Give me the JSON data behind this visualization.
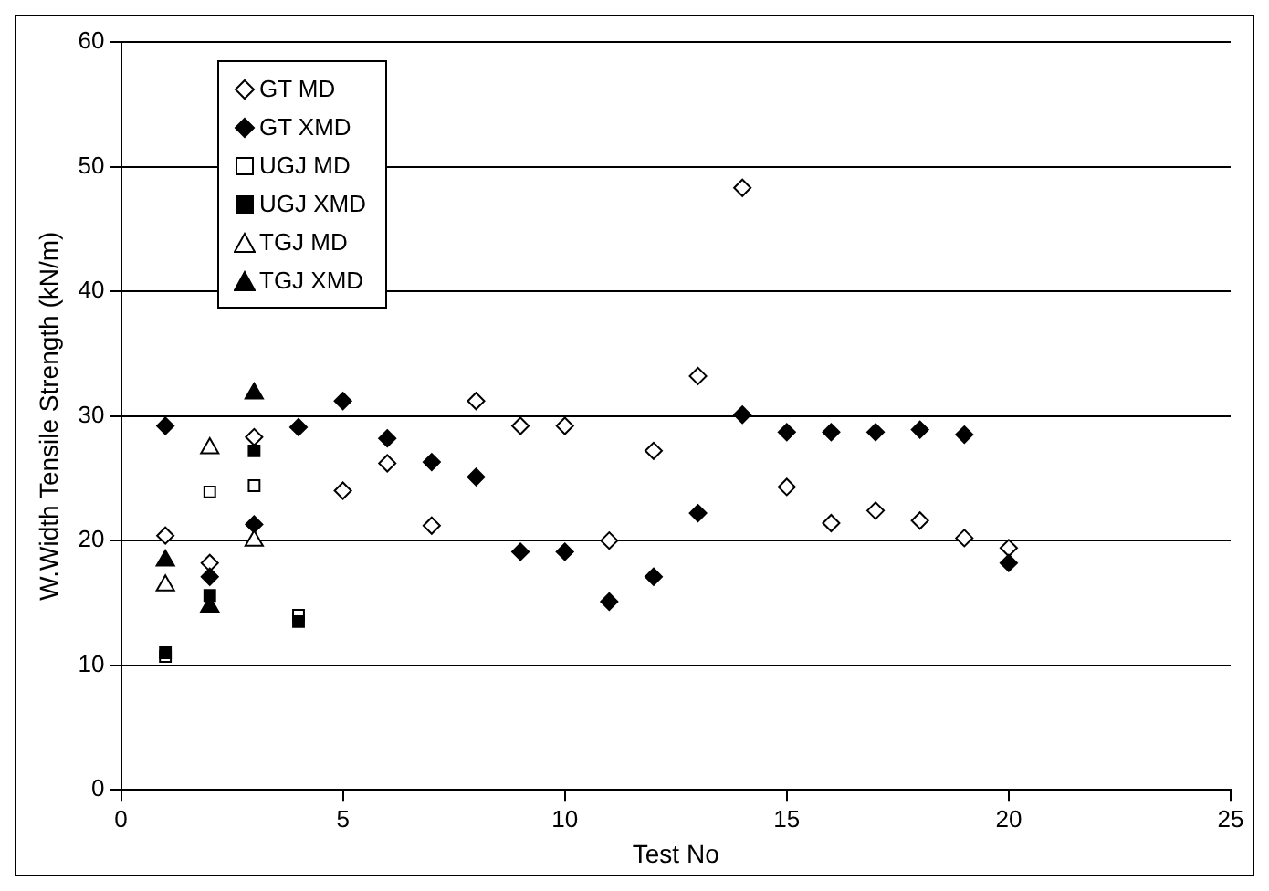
{
  "chart_data": {
    "type": "scatter",
    "xlabel": "Test No",
    "ylabel": "W.Width Tensile Strength (kN/m)",
    "xlim": [
      0,
      25
    ],
    "xticks": [
      0,
      5,
      10,
      15,
      20,
      25
    ],
    "ylim": [
      0,
      60
    ],
    "yticks": [
      0,
      10,
      20,
      30,
      40,
      50,
      60
    ],
    "grid": "y",
    "legend": "top left",
    "series": [
      {
        "name": "GT MD",
        "color": "#ffffff",
        "marker": "diamond",
        "x": [
          1,
          2,
          3,
          5,
          6,
          7,
          8,
          9,
          10,
          11,
          12,
          13,
          14,
          15,
          16,
          17,
          18,
          19,
          20
        ],
        "values": [
          20.4,
          18.2,
          28.3,
          24.0,
          26.2,
          21.2,
          31.2,
          29.2,
          29.2,
          20.0,
          27.2,
          33.2,
          48.3,
          24.3,
          21.4,
          22.4,
          21.6,
          20.2,
          19.4
        ]
      },
      {
        "name": "GT XMD",
        "color": "#000000",
        "marker": "diamond",
        "x": [
          1,
          2,
          3,
          4,
          5,
          6,
          7,
          8,
          9,
          10,
          11,
          12,
          13,
          14,
          15,
          16,
          17,
          18,
          19,
          20
        ],
        "values": [
          29.2,
          17.1,
          21.3,
          29.1,
          31.2,
          28.2,
          26.3,
          25.1,
          19.1,
          19.1,
          15.1,
          17.1,
          22.2,
          30.1,
          28.7,
          28.7,
          28.7,
          28.9,
          28.5,
          18.2
        ]
      },
      {
        "name": "UGJ MD",
        "color": "#ffffff",
        "marker": "square",
        "x": [
          1,
          2,
          3,
          4
        ],
        "values": [
          10.7,
          23.9,
          24.4,
          14.0
        ]
      },
      {
        "name": "UGJ XMD",
        "color": "#000000",
        "marker": "square",
        "x": [
          1,
          2,
          3,
          4
        ],
        "values": [
          11.0,
          15.6,
          27.2,
          13.5
        ]
      },
      {
        "name": "TGJ MD",
        "color": "#ffffff",
        "marker": "triangle",
        "x": [
          1,
          2,
          3
        ],
        "values": [
          16.4,
          27.4,
          20.0
        ]
      },
      {
        "name": "TGJ XMD",
        "color": "#000000",
        "marker": "triangle",
        "x": [
          1,
          2,
          3
        ],
        "values": [
          18.4,
          14.7,
          31.8
        ]
      }
    ]
  }
}
